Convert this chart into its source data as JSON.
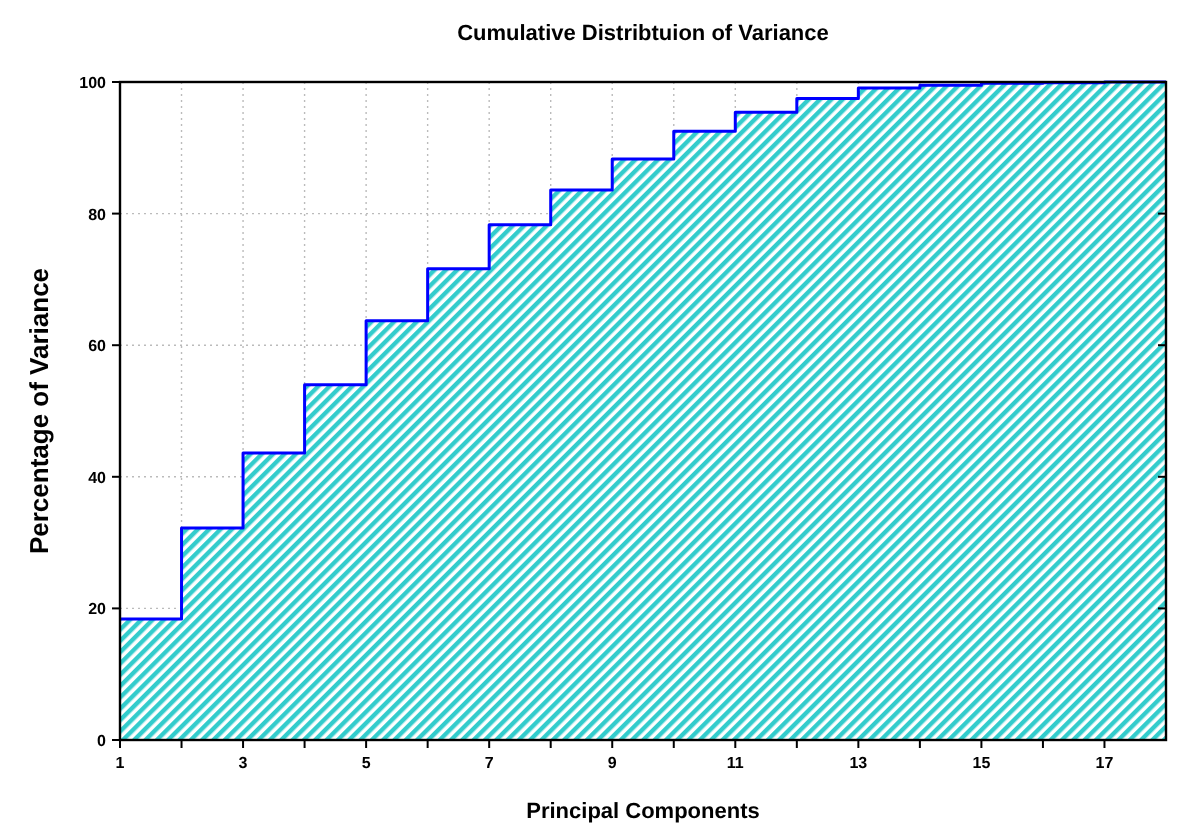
{
  "chart_data": {
    "type": "area",
    "title": "Cumulative Distribtuion of Variance",
    "xlabel": "Principal Components",
    "ylabel": "Percentage of Variance",
    "x": [
      1,
      2,
      2,
      3,
      3,
      4,
      4,
      5,
      5,
      6,
      6,
      7,
      7,
      8,
      8,
      9,
      9,
      10,
      10,
      11,
      11,
      12,
      12,
      13,
      13,
      14,
      14,
      15,
      15,
      16,
      16,
      17,
      17,
      18
    ],
    "series": [
      {
        "color": "#0000ff",
        "values": [
          18.4,
          18.4,
          32.2,
          32.2,
          43.6,
          43.6,
          54.0,
          54.0,
          63.7,
          63.7,
          71.6,
          71.6,
          78.3,
          78.3,
          83.6,
          83.6,
          88.3,
          88.3,
          92.5,
          92.5,
          95.4,
          95.4,
          97.5,
          97.5,
          99.1,
          99.1,
          99.5,
          99.5,
          99.8,
          99.8,
          99.9,
          99.9,
          100,
          100
        ]
      }
    ],
    "xlim": [
      1,
      18
    ],
    "xticks": [
      1,
      {
        "value": 2,
        "label": null
      },
      3,
      {
        "value": 4,
        "label": null
      },
      5,
      {
        "value": 6,
        "label": null
      },
      7,
      {
        "value": 8,
        "label": null
      },
      9,
      {
        "value": 10,
        "label": null
      },
      11,
      {
        "value": 12,
        "label": null
      },
      13,
      {
        "value": 14,
        "label": null
      },
      15,
      {
        "value": 16,
        "label": null
      },
      17
    ],
    "ylim": [
      0,
      100
    ],
    "yticks": [
      0,
      20,
      40,
      60,
      80,
      100
    ],
    "grid": true
  }
}
